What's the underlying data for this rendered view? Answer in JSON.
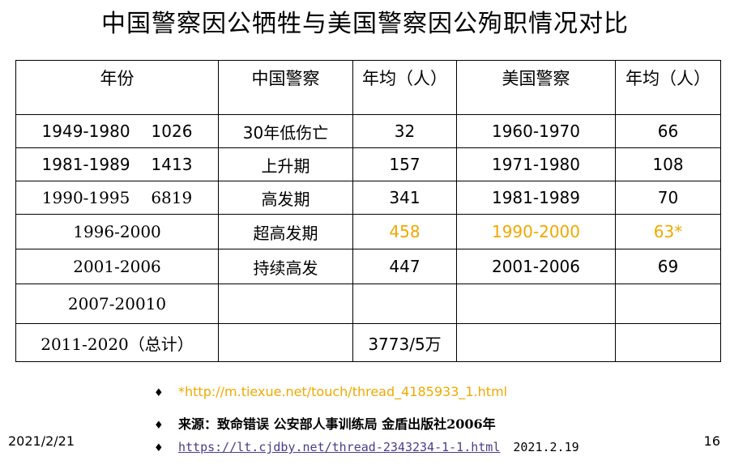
{
  "title": "中国警察因公牺牲与美国警察因公殉职情况对比",
  "table": {
    "headers": [
      "年份",
      "中国警察",
      "年均（人）",
      "美国警察",
      "年均（人）"
    ],
    "rows": [
      {
        "year": "1949-1980",
        "count": "1026",
        "cn": "30年低伤亡",
        "cn_avg": "32",
        "us": "1960-1970",
        "us_avg": "66"
      },
      {
        "year": "1981-1989",
        "count": "1413",
        "cn": "上升期",
        "cn_avg": "157",
        "us": "1971-1980",
        "us_avg": "108"
      },
      {
        "year": "1990-1995",
        "count": "6819",
        "cn": "高发期",
        "cn_avg": "341",
        "us": "1981-1989",
        "us_avg": "70"
      },
      {
        "year": "1996-2000",
        "count": "",
        "cn": "超高发期",
        "cn_avg": "458",
        "us": "1990-2000",
        "us_avg": "63*"
      },
      {
        "year": "2001-2006",
        "count": "",
        "cn": "持续高发",
        "cn_avg": "447",
        "us": "2001-2006",
        "us_avg": "69"
      },
      {
        "year": "2007-20010",
        "count": "",
        "cn": "",
        "cn_avg": "",
        "us": "",
        "us_avg": ""
      },
      {
        "year": "2011-2020（总计）",
        "count": "",
        "cn": "",
        "cn_avg": "3773/5万",
        "us": "",
        "us_avg": ""
      }
    ]
  },
  "notes": {
    "bullet": "♦",
    "link1": "*http://m.tiexue.net/touch/thread_4185933_1.html",
    "source": "来源：致命错误 公安部人事训练局 金盾出版社2006年",
    "link2": "https://lt.cjdby.net/thread-2343234-1-1.html",
    "link2_date": "2021.2.19"
  },
  "footer": {
    "date": "2021/2/21",
    "page": "16"
  },
  "colors": {
    "highlight": "#f0a800",
    "link": "#4a3c8c"
  }
}
